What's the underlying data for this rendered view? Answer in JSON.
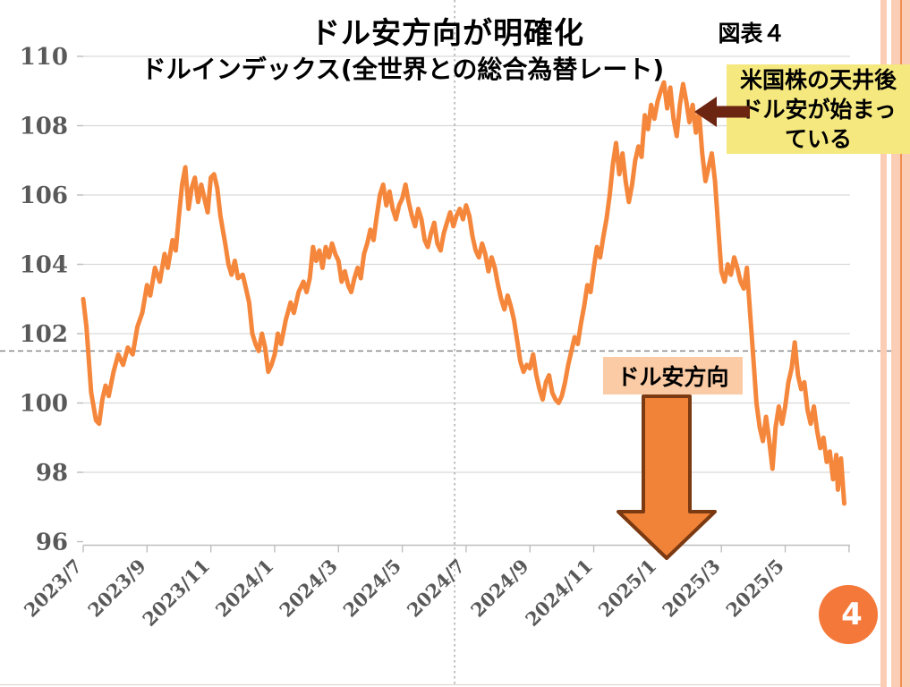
{
  "header": {
    "figure_label": "図表４"
  },
  "annotations": {
    "callout": {
      "lines": [
        "米国株の天井後",
        "ドル安が始まっ",
        "ている"
      ]
    },
    "down_label": "ドル安方向"
  },
  "footer": {
    "page_number": "4"
  },
  "colors": {
    "line": "#F5873C",
    "axis_text": "#595959",
    "gridline": "#D9D9D9",
    "axis_line": "#BFBFBF",
    "dashed_ref": "#8a8a8a",
    "dotted_ref": "#a6a6a6",
    "down_arrow_fill": "#F08338",
    "down_arrow_stroke": "#7B3A12",
    "callout_bg": "#F5E87E",
    "callout_arrow": "#6B2511",
    "label_bg": "#FACBA4",
    "badge": "#F4783A",
    "stripe": "#FBCDB4",
    "stripe_line": "#EE9051"
  },
  "chart_data": {
    "type": "line",
    "title": "ドル安方向が明確化",
    "subtitle": "ドルインデックス(全世界との総合為替レート)",
    "xlabel": "",
    "ylabel": "",
    "ylim": [
      96,
      110
    ],
    "y_ticks": [
      96,
      98,
      100,
      102,
      104,
      106,
      108,
      110
    ],
    "x_tick_labels": [
      "2023/7",
      "2023/9",
      "2023/11",
      "2024/1",
      "2024/3",
      "2024/5",
      "2024/7",
      "2024/9",
      "2024/11",
      "2025/1",
      "2025/3",
      "2025/5"
    ],
    "x_unit": "months since 2023/7 (0 = 2023/7)",
    "grid": "horizontal",
    "legend": "none",
    "reference_lines": {
      "horizontal_value": 101.5,
      "vertical_month": 11.64
    },
    "series": [
      {
        "name": "ドルインデックス",
        "points": [
          [
            0,
            103.0
          ],
          [
            0.1,
            102.2
          ],
          [
            0.25,
            100.3
          ],
          [
            0.4,
            99.5
          ],
          [
            0.5,
            99.4
          ],
          [
            0.6,
            100.1
          ],
          [
            0.7,
            100.5
          ],
          [
            0.8,
            100.2
          ],
          [
            0.95,
            100.9
          ],
          [
            1.1,
            101.4
          ],
          [
            1.25,
            101.1
          ],
          [
            1.4,
            101.6
          ],
          [
            1.55,
            101.4
          ],
          [
            1.7,
            102.2
          ],
          [
            1.85,
            102.6
          ],
          [
            2.0,
            103.4
          ],
          [
            2.1,
            103.1
          ],
          [
            2.25,
            103.9
          ],
          [
            2.4,
            103.5
          ],
          [
            2.55,
            104.3
          ],
          [
            2.65,
            103.9
          ],
          [
            2.8,
            104.7
          ],
          [
            2.9,
            104.4
          ],
          [
            3.0,
            105.4
          ],
          [
            3.1,
            106.3
          ],
          [
            3.2,
            106.8
          ],
          [
            3.3,
            105.6
          ],
          [
            3.4,
            106.2
          ],
          [
            3.5,
            106.5
          ],
          [
            3.6,
            105.8
          ],
          [
            3.7,
            106.3
          ],
          [
            3.8,
            105.9
          ],
          [
            3.9,
            105.5
          ],
          [
            4.0,
            106.5
          ],
          [
            4.1,
            106.6
          ],
          [
            4.2,
            106.2
          ],
          [
            4.3,
            105.4
          ],
          [
            4.45,
            104.6
          ],
          [
            4.55,
            104.0
          ],
          [
            4.65,
            103.7
          ],
          [
            4.75,
            104.1
          ],
          [
            4.85,
            103.6
          ],
          [
            5.0,
            103.7
          ],
          [
            5.1,
            103.3
          ],
          [
            5.2,
            102.9
          ],
          [
            5.3,
            102.0
          ],
          [
            5.4,
            101.7
          ],
          [
            5.5,
            101.5
          ],
          [
            5.6,
            102.0
          ],
          [
            5.7,
            101.6
          ],
          [
            5.8,
            100.9
          ],
          [
            5.9,
            101.1
          ],
          [
            6.0,
            101.4
          ],
          [
            6.1,
            102.0
          ],
          [
            6.2,
            101.7
          ],
          [
            6.35,
            102.4
          ],
          [
            6.5,
            102.9
          ],
          [
            6.6,
            102.6
          ],
          [
            6.75,
            103.2
          ],
          [
            6.9,
            103.5
          ],
          [
            7.0,
            103.2
          ],
          [
            7.1,
            103.6
          ],
          [
            7.2,
            104.5
          ],
          [
            7.3,
            104.1
          ],
          [
            7.4,
            104.4
          ],
          [
            7.5,
            103.9
          ],
          [
            7.6,
            104.5
          ],
          [
            7.7,
            104.2
          ],
          [
            7.8,
            104.6
          ],
          [
            7.9,
            104.3
          ],
          [
            8.0,
            104.1
          ],
          [
            8.1,
            103.5
          ],
          [
            8.2,
            103.8
          ],
          [
            8.3,
            103.4
          ],
          [
            8.4,
            103.2
          ],
          [
            8.5,
            103.6
          ],
          [
            8.6,
            103.9
          ],
          [
            8.7,
            103.6
          ],
          [
            8.8,
            104.3
          ],
          [
            8.9,
            104.6
          ],
          [
            9.0,
            105.0
          ],
          [
            9.1,
            104.7
          ],
          [
            9.2,
            105.4
          ],
          [
            9.3,
            106.0
          ],
          [
            9.4,
            106.3
          ],
          [
            9.5,
            105.7
          ],
          [
            9.6,
            106.1
          ],
          [
            9.7,
            105.6
          ],
          [
            9.8,
            105.3
          ],
          [
            9.9,
            105.7
          ],
          [
            10.0,
            105.9
          ],
          [
            10.1,
            106.3
          ],
          [
            10.2,
            105.8
          ],
          [
            10.3,
            105.4
          ],
          [
            10.4,
            105.1
          ],
          [
            10.5,
            105.6
          ],
          [
            10.6,
            105.3
          ],
          [
            10.7,
            104.7
          ],
          [
            10.8,
            104.5
          ],
          [
            10.9,
            104.9
          ],
          [
            11.0,
            105.2
          ],
          [
            11.1,
            104.6
          ],
          [
            11.2,
            104.4
          ],
          [
            11.3,
            104.9
          ],
          [
            11.4,
            105.2
          ],
          [
            11.5,
            105.5
          ],
          [
            11.6,
            105.1
          ],
          [
            11.7,
            105.4
          ],
          [
            11.8,
            105.6
          ],
          [
            11.9,
            105.3
          ],
          [
            12.0,
            105.7
          ],
          [
            12.1,
            105.4
          ],
          [
            12.2,
            104.8
          ],
          [
            12.3,
            104.4
          ],
          [
            12.4,
            104.2
          ],
          [
            12.5,
            104.6
          ],
          [
            12.6,
            104.3
          ],
          [
            12.7,
            103.8
          ],
          [
            12.8,
            104.2
          ],
          [
            12.9,
            103.9
          ],
          [
            13.0,
            103.4
          ],
          [
            13.1,
            103.0
          ],
          [
            13.2,
            102.7
          ],
          [
            13.3,
            103.1
          ],
          [
            13.4,
            102.8
          ],
          [
            13.5,
            102.4
          ],
          [
            13.6,
            101.8
          ],
          [
            13.7,
            101.2
          ],
          [
            13.8,
            100.9
          ],
          [
            13.9,
            101.1
          ],
          [
            14.0,
            101.0
          ],
          [
            14.1,
            101.4
          ],
          [
            14.2,
            100.8
          ],
          [
            14.3,
            100.4
          ],
          [
            14.4,
            100.1
          ],
          [
            14.5,
            100.6
          ],
          [
            14.6,
            100.8
          ],
          [
            14.7,
            100.3
          ],
          [
            14.8,
            100.1
          ],
          [
            14.9,
            100.0
          ],
          [
            15.0,
            100.2
          ],
          [
            15.1,
            100.6
          ],
          [
            15.2,
            101.1
          ],
          [
            15.3,
            101.5
          ],
          [
            15.4,
            101.9
          ],
          [
            15.5,
            101.7
          ],
          [
            15.6,
            102.3
          ],
          [
            15.7,
            102.8
          ],
          [
            15.8,
            103.4
          ],
          [
            15.9,
            103.2
          ],
          [
            16.0,
            103.9
          ],
          [
            16.1,
            104.5
          ],
          [
            16.2,
            104.2
          ],
          [
            16.3,
            104.8
          ],
          [
            16.4,
            105.3
          ],
          [
            16.5,
            106.0
          ],
          [
            16.6,
            106.9
          ],
          [
            16.7,
            107.5
          ],
          [
            16.8,
            106.6
          ],
          [
            16.9,
            107.2
          ],
          [
            17.0,
            106.4
          ],
          [
            17.1,
            105.8
          ],
          [
            17.2,
            106.3
          ],
          [
            17.3,
            107.0
          ],
          [
            17.4,
            107.4
          ],
          [
            17.5,
            107.1
          ],
          [
            17.6,
            108.3
          ],
          [
            17.7,
            107.9
          ],
          [
            17.8,
            108.6
          ],
          [
            17.9,
            108.2
          ],
          [
            18.0,
            108.7
          ],
          [
            18.1,
            109.0
          ],
          [
            18.2,
            109.25
          ],
          [
            18.3,
            108.5
          ],
          [
            18.4,
            109.1
          ],
          [
            18.5,
            108.2
          ],
          [
            18.6,
            107.7
          ],
          [
            18.7,
            108.6
          ],
          [
            18.8,
            109.2
          ],
          [
            18.9,
            108.7
          ],
          [
            19.0,
            108.1
          ],
          [
            19.1,
            108.6
          ],
          [
            19.2,
            107.8
          ],
          [
            19.3,
            108.4
          ],
          [
            19.4,
            107.2
          ],
          [
            19.5,
            106.4
          ],
          [
            19.6,
            106.8
          ],
          [
            19.7,
            107.2
          ],
          [
            19.8,
            106.4
          ],
          [
            19.9,
            105.1
          ],
          [
            20.0,
            103.8
          ],
          [
            20.1,
            103.5
          ],
          [
            20.2,
            104.0
          ],
          [
            20.3,
            103.7
          ],
          [
            20.4,
            104.2
          ],
          [
            20.5,
            103.9
          ],
          [
            20.6,
            103.5
          ],
          [
            20.7,
            103.3
          ],
          [
            20.8,
            103.9
          ],
          [
            20.9,
            102.6
          ],
          [
            21.0,
            101.3
          ],
          [
            21.1,
            100.0
          ],
          [
            21.2,
            99.3
          ],
          [
            21.3,
            98.9
          ],
          [
            21.4,
            99.6
          ],
          [
            21.5,
            98.9
          ],
          [
            21.6,
            98.1
          ],
          [
            21.7,
            99.3
          ],
          [
            21.8,
            99.9
          ],
          [
            21.9,
            99.4
          ],
          [
            22.0,
            99.9
          ],
          [
            22.1,
            100.6
          ],
          [
            22.2,
            101.0
          ],
          [
            22.3,
            101.75
          ],
          [
            22.4,
            100.8
          ],
          [
            22.5,
            100.4
          ],
          [
            22.6,
            100.6
          ],
          [
            22.7,
            99.8
          ],
          [
            22.8,
            99.4
          ],
          [
            22.9,
            99.9
          ],
          [
            23.0,
            99.2
          ],
          [
            23.1,
            98.7
          ],
          [
            23.2,
            99.0
          ],
          [
            23.3,
            98.3
          ],
          [
            23.4,
            98.6
          ],
          [
            23.5,
            97.8
          ],
          [
            23.6,
            98.5
          ],
          [
            23.65,
            97.5
          ],
          [
            23.75,
            98.4
          ],
          [
            23.85,
            97.1
          ]
        ]
      }
    ]
  }
}
